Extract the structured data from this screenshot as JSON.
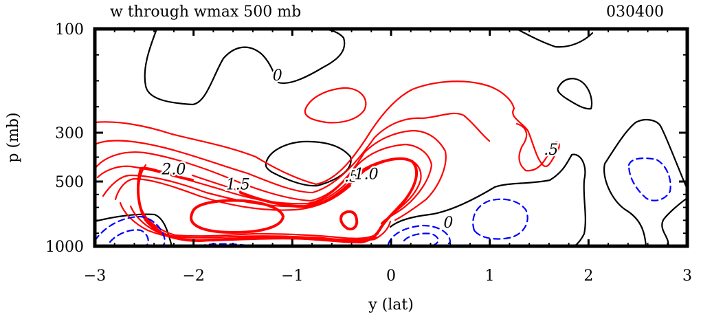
{
  "chart_data": {
    "type": "contour",
    "title": "w through wmax 500 mb",
    "time_label": "030400",
    "xlabel": "y (lat)",
    "ylabel": "p (mb)",
    "xlim": [
      -3,
      3
    ],
    "x_ticks": [
      -3,
      -2,
      -1,
      0,
      1,
      2,
      3
    ],
    "x_tick_labels": [
      "−3",
      "−2",
      "−1",
      "0",
      "1",
      "2",
      "3"
    ],
    "ylim_mb": [
      1000,
      100
    ],
    "y_ticks_mb": [
      100,
      300,
      500,
      1000
    ],
    "y_tick_labels": [
      "100",
      "300",
      "500",
      "1000"
    ],
    "contour_interval": 0.25,
    "positive_color": "#ff0000",
    "zero_color": "#000000",
    "negative_color": "#0000ff",
    "negative_style": "dashed",
    "contour_labels": [
      {
        "text": "0",
        "x": -1.15,
        "p": 190
      },
      {
        "text": "0",
        "x": 0.58,
        "p": 820
      },
      {
        "text": ".5",
        "x": 1.62,
        "p": 370
      },
      {
        "text": ".5",
        "x": -0.4,
        "p": 480
      },
      {
        "text": "1.0",
        "x": -0.25,
        "p": 470
      },
      {
        "text": "1.5",
        "x": -1.55,
        "p": 525
      },
      {
        "text": "2.0",
        "x": -2.2,
        "p": 450
      }
    ],
    "features": [
      {
        "name": "updraft maximum",
        "x": -1.45,
        "p": 760,
        "max_value": 2.25
      },
      {
        "name": "secondary updraft",
        "x": -0.45,
        "p": 800,
        "max_value": 2.0
      },
      {
        "name": "upper positive cell",
        "x": -0.55,
        "p": 230,
        "max_value": 0.5
      },
      {
        "name": "downdraft",
        "x": 1.1,
        "p": 750,
        "min_value": -0.25
      },
      {
        "name": "downdraft",
        "x": 2.7,
        "p": 520,
        "min_value": -0.25
      },
      {
        "name": "downdraft",
        "x": -2.65,
        "p": 900,
        "min_value": -0.5
      },
      {
        "name": "downdraft",
        "x": 0.35,
        "p": 900,
        "min_value": -0.5
      }
    ]
  }
}
